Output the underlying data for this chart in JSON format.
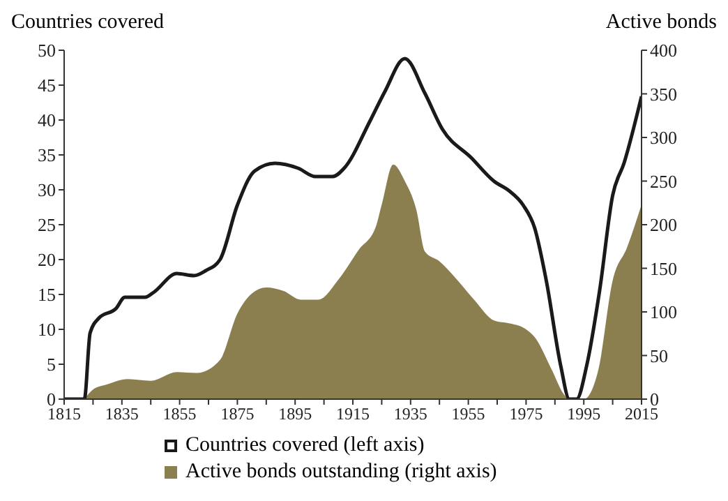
{
  "chart_data": {
    "type": "line",
    "ylabel": "Countries covered",
    "y2label": "Active bonds",
    "xlim": [
      1815,
      2015
    ],
    "xticks": [
      1815,
      {
        "value": 1825,
        "label": null
      },
      1835,
      {
        "value": 1845,
        "label": null
      },
      1855,
      {
        "value": 1865,
        "label": null
      },
      1875,
      {
        "value": 1885,
        "label": null
      },
      1895,
      {
        "value": 1905,
        "label": null
      },
      1915,
      {
        "value": 1925,
        "label": null
      },
      1935,
      {
        "value": 1945,
        "label": null
      },
      1955,
      {
        "value": 1965,
        "label": null
      },
      1975,
      {
        "value": 1985,
        "label": null
      },
      1995,
      {
        "value": 2005,
        "label": null
      },
      2015
    ],
    "ylim": [
      0,
      50
    ],
    "yticks": [
      0,
      5,
      10,
      15,
      20,
      25,
      30,
      35,
      40,
      45,
      50
    ],
    "y2lim": [
      0,
      400
    ],
    "y2ticks": [
      0,
      50,
      100,
      150,
      200,
      250,
      300,
      350,
      400
    ],
    "legend": "bottom",
    "series": [
      {
        "name": "Countries covered (left axis)",
        "axis": "y",
        "color": "#1a1a1a",
        "x": [
          1815,
          1822,
          1824,
          1827,
          1833,
          1836,
          1843,
          1846,
          1854,
          1860,
          1864,
          1869,
          1875,
          1881,
          1888,
          1896,
          1902,
          1908,
          1912,
          1921,
          1926,
          1933,
          1940,
          1946,
          1956,
          1964,
          1969,
          1974,
          1978,
          1982,
          1987,
          1990,
          1992.5,
          1996,
          2000.5,
          2005,
          2009,
          2015
        ],
        "values": [
          0,
          0,
          9.5,
          11.6,
          13,
          14.6,
          14.6,
          15.3,
          18,
          17.7,
          18.4,
          20,
          27.8,
          32.7,
          33.8,
          33.1,
          31.9,
          31.9,
          33.1,
          39.9,
          44,
          48.8,
          43.8,
          38.7,
          34.6,
          31.2,
          29.9,
          27.8,
          24.5,
          17,
          4.8,
          0,
          0,
          4.8,
          15.6,
          29.2,
          33.9,
          43.4
        ]
      },
      {
        "name": "Active bonds outstanding (right axis)",
        "type": "area",
        "axis": "y2",
        "color": "#8b7f4f",
        "x": [
          1822,
          1825,
          1830,
          1837,
          1845,
          1854,
          1861,
          1869,
          1875,
          1880,
          1885,
          1891,
          1897,
          1903,
          1910,
          1917,
          1923,
          1925,
          1929,
          1933,
          1937,
          1940,
          1945,
          1950,
          1957,
          1964,
          1969,
          1974,
          1978,
          1984,
          1988,
          1990,
          1995,
          2000,
          2005,
          2010,
          2015
        ],
        "values": [
          0,
          11,
          17,
          23,
          21,
          31,
          30,
          45,
          98,
          121,
          128,
          124,
          114,
          114,
          137,
          171,
          198,
          223,
          269,
          250,
          217,
          169,
          158,
          141,
          114,
          90,
          87,
          82,
          71,
          33,
          6,
          0,
          0,
          33,
          136,
          174,
          223
        ]
      }
    ]
  }
}
